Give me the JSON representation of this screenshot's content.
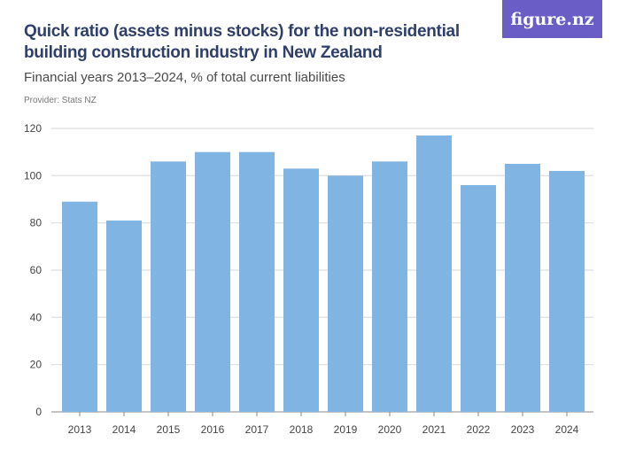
{
  "header": {
    "title": "Quick ratio (assets minus stocks) for the non-residential building construction industry in New Zealand",
    "subtitle": "Financial years 2013–2024, % of total current liabilities",
    "provider": "Provider: Stats NZ",
    "logo": "figure.nz"
  },
  "chart_data": {
    "type": "bar",
    "categories": [
      "2013",
      "2014",
      "2015",
      "2016",
      "2017",
      "2018",
      "2019",
      "2020",
      "2021",
      "2022",
      "2023",
      "2024"
    ],
    "values": [
      89,
      81,
      106,
      110,
      110,
      103,
      100,
      106,
      117,
      96,
      105,
      102
    ],
    "yticks": [
      0,
      20,
      40,
      60,
      80,
      100,
      120
    ],
    "ylim": [
      0,
      120
    ],
    "grid": true,
    "bar_color": "#7fb4e3"
  }
}
